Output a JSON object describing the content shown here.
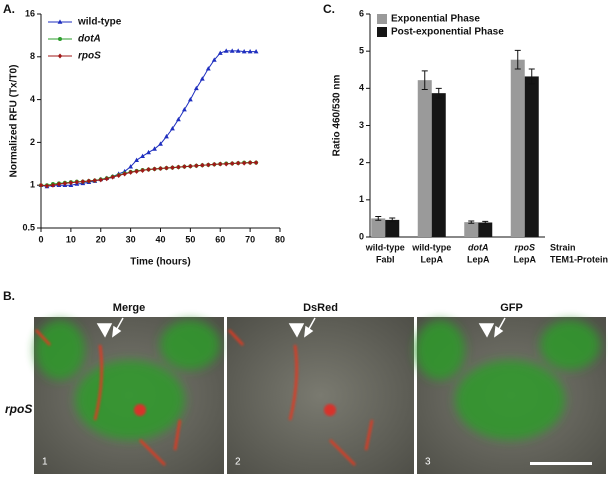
{
  "chart_data": [
    {
      "type": "line",
      "panel_label": "A.",
      "x_label": "Time (hours)",
      "y_label": "Normalized RFU (Tx/T0)",
      "yscale": "log",
      "legend": "upper left",
      "x": [
        0,
        2,
        4,
        6,
        8,
        10,
        12,
        14,
        16,
        18,
        20,
        22,
        24,
        26,
        28,
        30,
        32,
        34,
        36,
        38,
        40,
        42,
        44,
        46,
        48,
        50,
        52,
        54,
        56,
        58,
        60,
        62,
        64,
        66,
        68,
        70,
        72
      ],
      "xlim": [
        0,
        80
      ],
      "xticks": [
        0,
        10,
        20,
        30,
        40,
        50,
        60,
        70,
        80
      ],
      "ylim": [
        0.5,
        16
      ],
      "yticks": [
        0.5,
        1,
        2,
        4,
        8,
        16
      ],
      "series": [
        {
          "name": "wild-type",
          "color": "#1f2fbf",
          "marker": "triangle",
          "values": [
            1.0,
            0.98,
            1.0,
            1.0,
            1.0,
            1.0,
            1.02,
            1.03,
            1.05,
            1.07,
            1.1,
            1.12,
            1.15,
            1.2,
            1.25,
            1.35,
            1.5,
            1.6,
            1.7,
            1.8,
            1.95,
            2.2,
            2.5,
            2.9,
            3.4,
            4.0,
            4.8,
            5.6,
            6.6,
            7.6,
            8.5,
            8.8,
            8.8,
            8.8,
            8.7,
            8.7,
            8.7
          ]
        },
        {
          "name": "dotA",
          "color": "#2e9e2e",
          "marker": "circle",
          "values": [
            1.0,
            1.0,
            1.02,
            1.03,
            1.04,
            1.05,
            1.06,
            1.06,
            1.07,
            1.08,
            1.1,
            1.12,
            1.15,
            1.18,
            1.21,
            1.24,
            1.26,
            1.28,
            1.29,
            1.3,
            1.31,
            1.32,
            1.33,
            1.34,
            1.35,
            1.36,
            1.37,
            1.38,
            1.39,
            1.4,
            1.41,
            1.42,
            1.42,
            1.43,
            1.44,
            1.44,
            1.44
          ]
        },
        {
          "name": "rpoS",
          "color": "#a01818",
          "marker": "diamond",
          "values": [
            1.0,
            0.99,
            1.0,
            1.02,
            1.03,
            1.04,
            1.05,
            1.06,
            1.07,
            1.08,
            1.09,
            1.11,
            1.14,
            1.17,
            1.2,
            1.23,
            1.25,
            1.27,
            1.29,
            1.3,
            1.31,
            1.32,
            1.33,
            1.34,
            1.35,
            1.36,
            1.37,
            1.38,
            1.39,
            1.4,
            1.41,
            1.41,
            1.42,
            1.43,
            1.43,
            1.44,
            1.44
          ]
        }
      ]
    },
    {
      "type": "bar",
      "panel_label": "C.",
      "y_label": "Ratio 460/530 nm",
      "x_label": [
        "Strain",
        "TEM1-Protein"
      ],
      "legend": "upper left",
      "categories": [
        [
          "wild-type",
          "FabI"
        ],
        [
          "wild-type",
          "LepA"
        ],
        [
          "dotA",
          "LepA"
        ],
        [
          "rpoS",
          "LepA"
        ]
      ],
      "ylim": [
        0,
        6
      ],
      "yticks": [
        0,
        1,
        2,
        3,
        4,
        5,
        6
      ],
      "series": [
        {
          "name": "Exponential Phase",
          "color": "#9a9a9a",
          "values": [
            0.5,
            4.22,
            0.4,
            4.77
          ],
          "errors": [
            0.05,
            0.25,
            0.03,
            0.25
          ]
        },
        {
          "name": "Post-exponential Phase",
          "color": "#151515",
          "values": [
            0.46,
            3.87,
            0.39,
            4.32
          ],
          "errors": [
            0.05,
            0.13,
            0.03,
            0.2
          ]
        }
      ]
    }
  ],
  "panel_b": {
    "label": "B.",
    "row_label": "rpoS",
    "images": [
      {
        "title": "Merge",
        "number": "1"
      },
      {
        "title": "DsRed",
        "number": "2"
      },
      {
        "title": "GFP",
        "number": "3"
      }
    ]
  }
}
